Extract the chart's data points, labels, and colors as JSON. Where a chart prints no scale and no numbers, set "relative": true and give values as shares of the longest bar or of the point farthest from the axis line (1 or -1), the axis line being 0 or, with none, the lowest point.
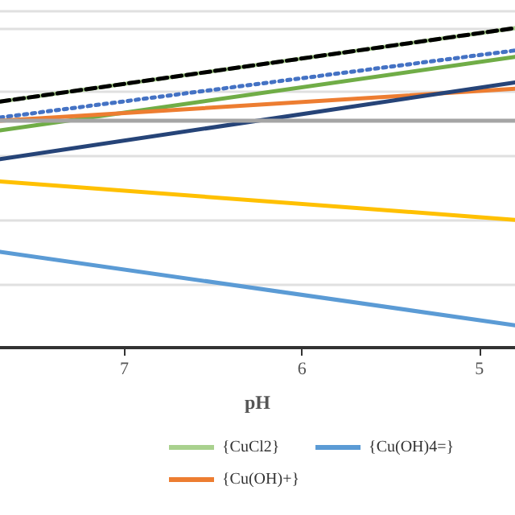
{
  "chart_data": {
    "type": "line",
    "xlabel": "pH",
    "relative": true,
    "x": [
      7.7,
      4.8
    ],
    "xlim": [
      7.7,
      4.8
    ],
    "xticks": [
      7,
      6,
      5
    ],
    "grid": "y",
    "legend": "bottom",
    "marker": "none",
    "series": [
      {
        "name": "{CuCl2}",
        "color": "#a9d18e",
        "values": [
          0.77,
          1.0
        ]
      },
      {
        "color": "#000000",
        "line_style": "dashed",
        "values": [
          0.77,
          1.0
        ]
      },
      {
        "color": "#4472c4",
        "line_style": "dotted",
        "values": [
          0.72,
          0.93
        ]
      },
      {
        "color": "#70ad47",
        "values": [
          0.68,
          0.91
        ]
      },
      {
        "name": "{Cu(OH)+}",
        "color": "#ed7d31",
        "values": [
          0.71,
          0.81
        ]
      },
      {
        "color": "#264478",
        "values": [
          0.59,
          0.83
        ]
      },
      {
        "color": "#a5a5a5",
        "values": [
          0.71,
          0.71
        ]
      },
      {
        "color": "#ffc000",
        "values": [
          0.52,
          0.4
        ]
      },
      {
        "name": "{Cu(OH)4=}",
        "color": "#5b9bd5",
        "values": [
          0.3,
          0.07
        ]
      }
    ]
  }
}
